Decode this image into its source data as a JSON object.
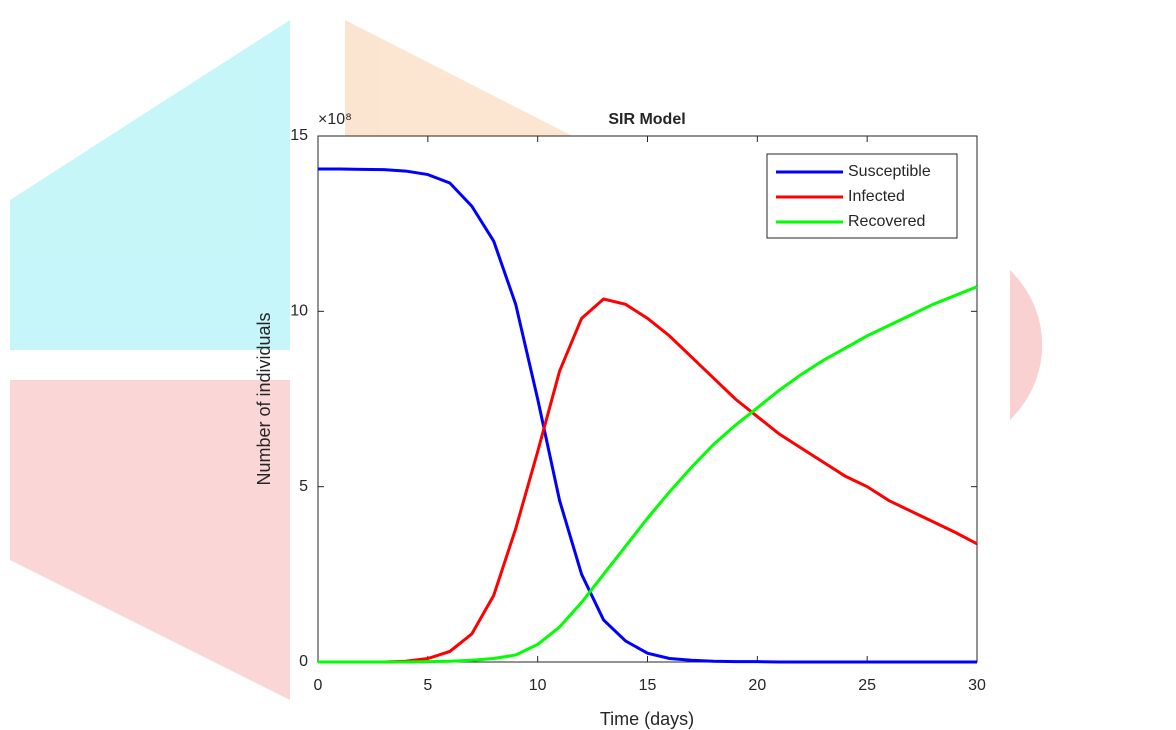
{
  "chart_data": {
    "type": "line",
    "title": "SIR Model",
    "x_label": "Time (days)",
    "y_label": "Number of individuals",
    "y_exponent": "×10⁸",
    "x": [
      0,
      1,
      2,
      3,
      4,
      5,
      6,
      7,
      8,
      9,
      10,
      11,
      12,
      13,
      14,
      15,
      16,
      17,
      18,
      19,
      20,
      21,
      22,
      23,
      24,
      25,
      26,
      27,
      28,
      29,
      30
    ],
    "series": [
      {
        "name": "Susceptible",
        "color": "#0000ff",
        "values": [
          14.06,
          14.06,
          14.05,
          14.04,
          14.0,
          13.9,
          13.66,
          13.0,
          12.0,
          10.2,
          7.5,
          4.6,
          2.5,
          1.2,
          0.6,
          0.25,
          0.1,
          0.05,
          0.02,
          0.01,
          0.01,
          0,
          0,
          0,
          0,
          0,
          0,
          0,
          0,
          0,
          0
        ]
      },
      {
        "name": "Infected",
        "color": "#ff0000",
        "values": [
          0,
          0,
          0,
          0,
          0.02,
          0.1,
          0.3,
          0.8,
          1.9,
          3.8,
          6.0,
          8.3,
          9.8,
          10.35,
          10.2,
          9.8,
          9.3,
          8.7,
          8.1,
          7.5,
          7.0,
          6.5,
          6.1,
          5.7,
          5.3,
          5.0,
          4.6,
          4.3,
          4.0,
          3.7,
          3.37
        ]
      },
      {
        "name": "Recovered",
        "color": "#00ff00",
        "values": [
          0,
          0,
          0,
          0,
          0,
          0.01,
          0.02,
          0.05,
          0.1,
          0.2,
          0.5,
          1.0,
          1.7,
          2.5,
          3.3,
          4.1,
          4.85,
          5.55,
          6.2,
          6.75,
          7.25,
          7.75,
          8.2,
          8.6,
          8.95,
          9.3,
          9.6,
          9.9,
          10.2,
          10.45,
          10.7
        ]
      }
    ],
    "xlim": [
      0,
      30
    ],
    "xticks": [
      0,
      5,
      10,
      15,
      20,
      25,
      30
    ],
    "ylim": [
      0,
      15
    ],
    "yticks": [
      0,
      5,
      10,
      15
    ],
    "grid": false,
    "legend": "top-right"
  }
}
